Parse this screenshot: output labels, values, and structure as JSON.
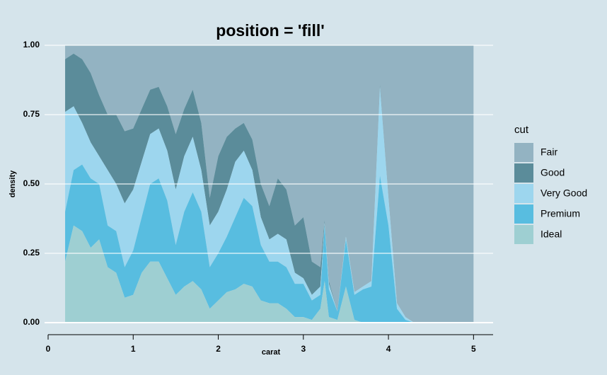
{
  "chart_data": {
    "type": "area",
    "stacking": "fill",
    "title": "position = 'fill'",
    "xlabel": "carat",
    "ylabel": "density",
    "legend_title": "cut",
    "legend": "right",
    "x": [
      0.2,
      0.3,
      0.4,
      0.5,
      0.6,
      0.7,
      0.8,
      0.9,
      1.0,
      1.1,
      1.2,
      1.3,
      1.4,
      1.5,
      1.6,
      1.7,
      1.8,
      1.9,
      2.0,
      2.1,
      2.2,
      2.3,
      2.4,
      2.5,
      2.6,
      2.7,
      2.8,
      2.9,
      3.0,
      3.1,
      3.2,
      3.25,
      3.3,
      3.4,
      3.5,
      3.6,
      3.7,
      3.8,
      3.9,
      4.0,
      4.1,
      4.2,
      4.3,
      4.5,
      5.0
    ],
    "series": [
      {
        "name": "Fair",
        "color": "#93b3c2",
        "values": [
          0.05,
          0.03,
          0.05,
          0.1,
          0.18,
          0.25,
          0.25,
          0.31,
          0.3,
          0.23,
          0.16,
          0.15,
          0.22,
          0.32,
          0.23,
          0.16,
          0.28,
          0.55,
          0.4,
          0.33,
          0.3,
          0.28,
          0.34,
          0.5,
          0.58,
          0.48,
          0.52,
          0.65,
          0.62,
          0.78,
          0.8,
          0.63,
          0.85,
          0.96,
          0.69,
          0.89,
          0.87,
          0.85,
          0.14,
          0.55,
          0.93,
          0.98,
          1,
          1,
          1
        ]
      },
      {
        "name": "Good",
        "color": "#5b8c9a",
        "values": [
          0.19,
          0.19,
          0.23,
          0.25,
          0.22,
          0.2,
          0.25,
          0.26,
          0.22,
          0.19,
          0.16,
          0.15,
          0.16,
          0.2,
          0.17,
          0.17,
          0.17,
          0.1,
          0.2,
          0.19,
          0.12,
          0.1,
          0.11,
          0.12,
          0.12,
          0.2,
          0.18,
          0.17,
          0.22,
          0.12,
          0.07,
          0.01,
          0.01,
          0,
          0,
          0,
          0,
          0,
          0.01,
          0,
          0,
          0,
          0,
          0,
          0
        ]
      },
      {
        "name": "Very Good",
        "color": "#9dd6ee",
        "values": [
          0.36,
          0.23,
          0.15,
          0.13,
          0.1,
          0.2,
          0.17,
          0.23,
          0.22,
          0.2,
          0.18,
          0.18,
          0.18,
          0.2,
          0.2,
          0.2,
          0.15,
          0.15,
          0.15,
          0.17,
          0.2,
          0.17,
          0.13,
          0.1,
          0.08,
          0.1,
          0.1,
          0.04,
          0.02,
          0.02,
          0.03,
          0.01,
          0.02,
          0,
          0.01,
          0.01,
          0.01,
          0.02,
          0.32,
          0.1,
          0.02,
          0.01,
          0,
          0,
          0
        ]
      },
      {
        "name": "Premium",
        "color": "#58bde0",
        "values": [
          0.18,
          0.2,
          0.24,
          0.25,
          0.2,
          0.15,
          0.15,
          0.11,
          0.16,
          0.2,
          0.28,
          0.3,
          0.28,
          0.18,
          0.27,
          0.32,
          0.28,
          0.15,
          0.17,
          0.2,
          0.26,
          0.31,
          0.29,
          0.2,
          0.15,
          0.15,
          0.15,
          0.12,
          0.12,
          0.07,
          0.05,
          0.2,
          0.1,
          0.03,
          0.17,
          0.09,
          0.12,
          0.13,
          0.53,
          0.35,
          0.05,
          0.01,
          0,
          0,
          0
        ]
      },
      {
        "name": "Ideal",
        "color": "#9ecfd2",
        "values": [
          0.22,
          0.35,
          0.33,
          0.27,
          0.3,
          0.2,
          0.18,
          0.09,
          0.1,
          0.18,
          0.22,
          0.22,
          0.16,
          0.1,
          0.13,
          0.15,
          0.12,
          0.05,
          0.08,
          0.11,
          0.12,
          0.14,
          0.13,
          0.08,
          0.07,
          0.07,
          0.05,
          0.02,
          0.02,
          0.01,
          0.05,
          0.15,
          0.02,
          0.01,
          0.13,
          0.01,
          0,
          0,
          0,
          0,
          0,
          0,
          0,
          0,
          0
        ]
      }
    ],
    "xlim": [
      0,
      5.23
    ],
    "xticks": [
      0,
      1,
      2,
      3,
      4,
      5
    ],
    "ylim": [
      0,
      1
    ],
    "yticks": [
      {
        "value": 0,
        "label": "0.00"
      },
      {
        "value": 0.25,
        "label": "0.25"
      },
      {
        "value": 0.5,
        "label": "0.50"
      },
      {
        "value": 0.75,
        "label": "0.75"
      },
      {
        "value": 1,
        "label": "1.00"
      }
    ],
    "grid": true
  }
}
